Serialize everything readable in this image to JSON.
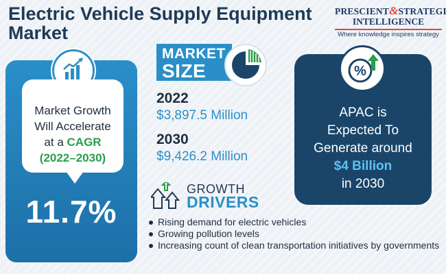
{
  "title": "Electric Vehicle Supply Equipment Market",
  "logo": {
    "line1_a": "PRESCIENT",
    "amp": "&",
    "line1_b": "STRATEGIC",
    "line2": "INTELLIGENCE",
    "tagline": "Where knowledge inspires strategy"
  },
  "cagr": {
    "line1": "Market Growth",
    "line2": "Will Accelerate",
    "line3_prefix": "at a ",
    "line3_highlight": "CAGR",
    "period": "(2022–2030)",
    "value": "11.7%",
    "icon": "growth-chart-icon"
  },
  "market_size": {
    "label_line1": "MARKET",
    "label_line2": "SIZE",
    "icon": "pie-chart-icon",
    "entries": [
      {
        "year": "2022",
        "amount": "$3,897.5 Million"
      },
      {
        "year": "2030",
        "amount": "$9,426.2 Million"
      }
    ]
  },
  "growth_drivers": {
    "label_line1": "GROWTH",
    "label_line2": "DRIVERS",
    "icon": "arrows-up-icon",
    "items": [
      "Rising demand for electric vehicles",
      "Growing pollution levels",
      "Increasing count of clean transportation initiatives by governments"
    ]
  },
  "apac": {
    "icon": "percent-up-icon",
    "line1": "APAC is",
    "line2": "Expected To",
    "line3": "Generate around",
    "highlight": "$4 Billion",
    "line5": "in 2030"
  },
  "colors": {
    "primary_blue": "#2a8fc8",
    "dark_navy": "#1a4569",
    "accent_green": "#2a9d4b",
    "accent_red": "#e0483a",
    "light_cyan": "#5cc2f2"
  }
}
